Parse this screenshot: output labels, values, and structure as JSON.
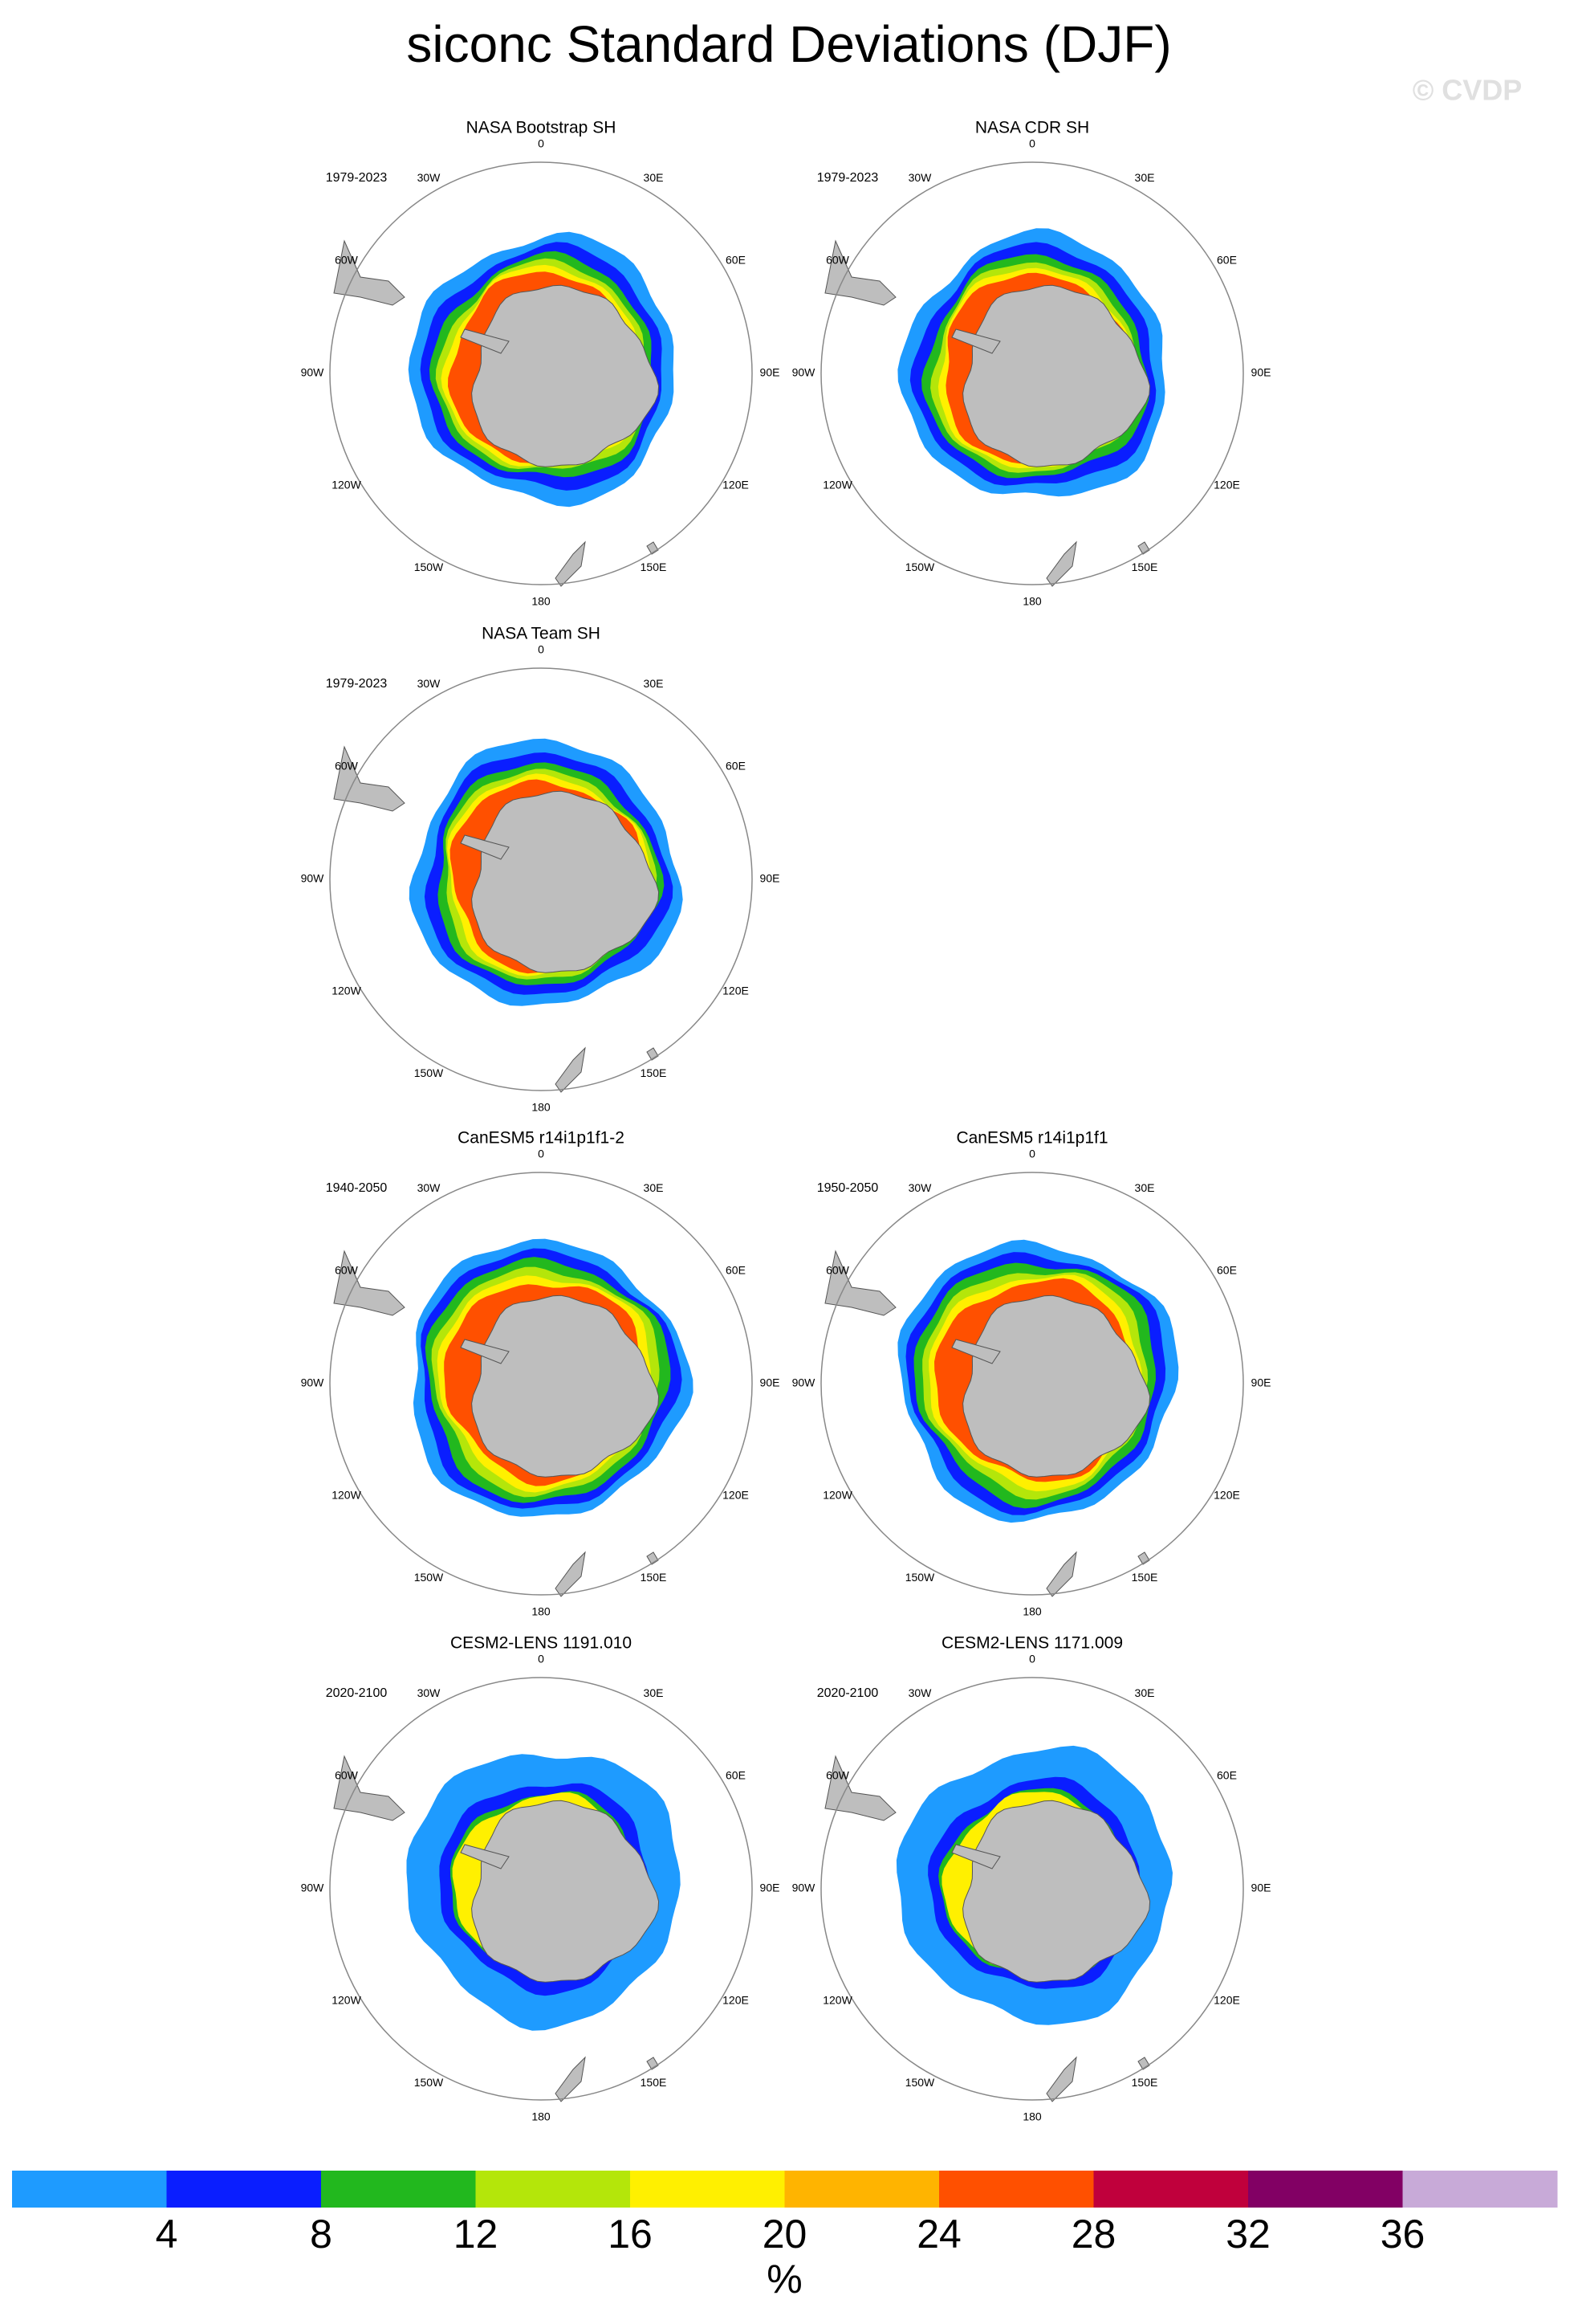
{
  "chart_data": {
    "type": "map",
    "title": "siconc Standard Deviations (DJF)",
    "watermark": "© CVDP",
    "lon_labels": [
      "0",
      "30E",
      "60E",
      "90E",
      "120E",
      "150E",
      "180",
      "150W",
      "120W",
      "90W",
      "60W",
      "30W"
    ],
    "panels": [
      {
        "title": "NASA Bootstrap SH",
        "period": "1979-2023"
      },
      {
        "title": "NASA CDR SH",
        "period": "1979-2023"
      },
      {
        "title": "NASA Team SH",
        "period": "1979-2023"
      },
      {
        "title": "CanESM5 r14i1p1f1-2",
        "period": "1940-2050"
      },
      {
        "title": "CanESM5 r14i1p1f1",
        "period": "1950-2050"
      },
      {
        "title": "CESM2-LENS 1191.010",
        "period": "2020-2100"
      },
      {
        "title": "CESM2-LENS 1171.009",
        "period": "2020-2100"
      }
    ],
    "colorbar": {
      "colors": [
        "#1e9bff",
        "#0a1eff",
        "#22b81e",
        "#b4e60a",
        "#fff000",
        "#ffb400",
        "#ff5000",
        "#c0003c",
        "#820064",
        "#c8aad8"
      ],
      "ticks": [
        4,
        8,
        12,
        16,
        20,
        24,
        28,
        32,
        36
      ],
      "label": "%"
    }
  }
}
